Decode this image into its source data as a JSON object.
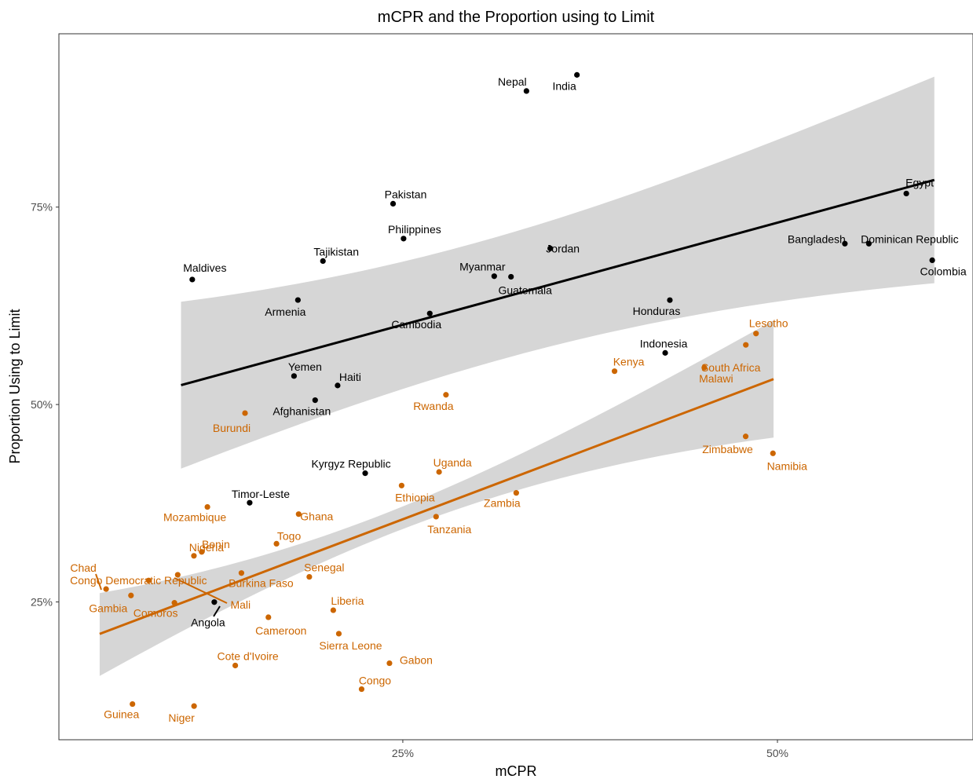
{
  "chart_data": {
    "type": "scatter",
    "title": "mCPR and the Proportion using to Limit",
    "xlabel": "mCPR",
    "ylabel": "Proportion Using to Limit",
    "xlim": [
      0.0205,
      0.6305
    ],
    "ylim": [
      0.0755,
      0.9695
    ],
    "x_ticks": [
      {
        "value": 0.25,
        "label": "25%"
      },
      {
        "value": 0.5,
        "label": "50%"
      }
    ],
    "y_ticks": [
      {
        "value": 0.25,
        "label": "25%"
      },
      {
        "value": 0.5,
        "label": "50%"
      },
      {
        "value": 0.75,
        "label": "75%"
      }
    ],
    "grid": false,
    "legend": "none",
    "colors": {
      "group_black": "#000000",
      "group_orange": "#CC6600",
      "band": "#D4D4D4",
      "axis": "#333333",
      "text": "#000000",
      "tick_text": "#4D4D4D"
    },
    "series": [
      {
        "color": "#000000",
        "fit": {
          "x": [
            0.102,
            0.6047
          ],
          "y": [
            0.5245,
            0.7844
          ],
          "ci_lower": [
            0.4188,
            0.6536
          ],
          "ci_upper": [
            0.6302,
            0.9152
          ]
        },
        "points": [
          {
            "label": "India",
            "x": 0.3662,
            "y": 0.9174
          },
          {
            "label": "Nepal",
            "x": 0.3325,
            "y": 0.897
          },
          {
            "label": "Egypt",
            "x": 0.586,
            "y": 0.7672
          },
          {
            "label": "Pakistan",
            "x": 0.2435,
            "y": 0.7543
          },
          {
            "label": "Philippines",
            "x": 0.2505,
            "y": 0.7101
          },
          {
            "label": "Jordan",
            "x": 0.3484,
            "y": 0.6977
          },
          {
            "label": "Bangladesh",
            "x": 0.545,
            "y": 0.7037
          },
          {
            "label": "Dominican Republic",
            "x": 0.561,
            "y": 0.7037
          },
          {
            "label": "Tajikistan",
            "x": 0.1967,
            "y": 0.6817
          },
          {
            "label": "Colombia",
            "x": 0.6033,
            "y": 0.6827
          },
          {
            "label": "Maldives",
            "x": 0.1095,
            "y": 0.6583
          },
          {
            "label": "Myanmar",
            "x": 0.311,
            "y": 0.6625
          },
          {
            "label": "Guatemala",
            "x": 0.3222,
            "y": 0.6618
          },
          {
            "label": "Armenia",
            "x": 0.18,
            "y": 0.6323
          },
          {
            "label": "Honduras",
            "x": 0.4282,
            "y": 0.6322
          },
          {
            "label": "Cambodia",
            "x": 0.268,
            "y": 0.6153
          },
          {
            "label": "Indonesia",
            "x": 0.4251,
            "y": 0.5654
          },
          {
            "label": "Yemen",
            "x": 0.1774,
            "y": 0.5361
          },
          {
            "label": "Haiti",
            "x": 0.2065,
            "y": 0.5241
          },
          {
            "label": "Afghanistan",
            "x": 0.1915,
            "y": 0.5055
          },
          {
            "label": "Kyrgyz Republic",
            "x": 0.2249,
            "y": 0.413
          },
          {
            "label": "Timor-Leste",
            "x": 0.1478,
            "y": 0.3756
          },
          {
            "label": "Angola",
            "x": 0.1242,
            "y": 0.2498
          }
        ]
      },
      {
        "color": "#CC6600",
        "fit": {
          "x": [
            0.0477,
            0.4974
          ],
          "y": [
            0.2095,
            0.5322
          ],
          "ci_lower": [
            0.1562,
            0.4581
          ],
          "ci_upper": [
            0.2612,
            0.6065
          ]
        },
        "points": [
          {
            "label": "Lesotho",
            "x": 0.4857,
            "y": 0.5899
          },
          {
            "label": "South Africa",
            "x": 0.4789,
            "y": 0.5755
          },
          {
            "label": "Malawi",
            "x": 0.4512,
            "y": 0.5468
          },
          {
            "label": "Kenya",
            "x": 0.3913,
            "y": 0.5422
          },
          {
            "label": "Rwanda",
            "x": 0.2788,
            "y": 0.5123
          },
          {
            "label": "Burundi",
            "x": 0.1447,
            "y": 0.4891
          },
          {
            "label": "Zimbabwe",
            "x": 0.4788,
            "y": 0.4596
          },
          {
            "label": "Namibia",
            "x": 0.497,
            "y": 0.4382
          },
          {
            "label": "Uganda",
            "x": 0.2742,
            "y": 0.4146
          },
          {
            "label": "Ethiopia",
            "x": 0.2492,
            "y": 0.3974
          },
          {
            "label": "Zambia",
            "x": 0.3257,
            "y": 0.3881
          },
          {
            "label": "Mozambique",
            "x": 0.1196,
            "y": 0.3703
          },
          {
            "label": "Ghana",
            "x": 0.1805,
            "y": 0.3612
          },
          {
            "label": "Tanzania",
            "x": 0.2722,
            "y": 0.358
          },
          {
            "label": "Togo",
            "x": 0.1657,
            "y": 0.3237
          },
          {
            "label": "Benin",
            "x": 0.1158,
            "y": 0.3134
          },
          {
            "label": "Nigeria",
            "x": 0.1106,
            "y": 0.3084
          },
          {
            "label": "Burkina Faso",
            "x": 0.1423,
            "y": 0.2866
          },
          {
            "label": "Senegal",
            "x": 0.1876,
            "y": 0.2818
          },
          {
            "label": "Chad",
            "x": 0.052,
            "y": 0.2663
          },
          {
            "label": "Congo Democratic Republic",
            "x": 0.0804,
            "y": 0.2772
          },
          {
            "label": "Gambia",
            "x": 0.0686,
            "y": 0.2582
          },
          {
            "label": "Mali",
            "x": 0.0998,
            "y": 0.2844
          },
          {
            "label": "Comoros",
            "x": 0.0976,
            "y": 0.2489
          },
          {
            "label": "Liberia",
            "x": 0.2036,
            "y": 0.2395
          },
          {
            "label": "Cameroon",
            "x": 0.1603,
            "y": 0.2306
          },
          {
            "label": "Sierra Leone",
            "x": 0.2073,
            "y": 0.2098
          },
          {
            "label": "Cote d'Ivoire",
            "x": 0.1382,
            "y": 0.1695
          },
          {
            "label": "Gabon",
            "x": 0.2411,
            "y": 0.1724
          },
          {
            "label": "Congo",
            "x": 0.2225,
            "y": 0.1396
          },
          {
            "label": "Guinea",
            "x": 0.0696,
            "y": 0.1207
          },
          {
            "label": "Niger",
            "x": 0.1107,
            "y": 0.1181
          }
        ]
      }
    ]
  }
}
